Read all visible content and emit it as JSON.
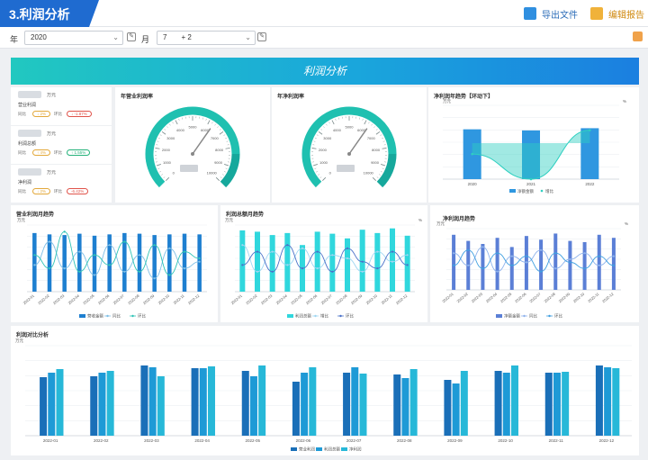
{
  "header": {
    "title": "3.利润分析",
    "export_label": "导出文件",
    "edit_label": "编辑报告"
  },
  "filters": {
    "year_label": "年",
    "year_value": "2020",
    "month_label": "月",
    "month_value": "7　　+ 2"
  },
  "banner": {
    "title": "利润分析"
  },
  "kpis": [
    {
      "unit": "万元",
      "name": "营业利润",
      "yoy_label": "同比",
      "yoy_value": "↓ 2%",
      "mom_label": "环比",
      "mom_value": "↓ -1.87%",
      "yoy_color": "#e3a83a",
      "mom_color": "#e0534a"
    },
    {
      "unit": "万元",
      "name": "利润总额",
      "yoy_label": "同比",
      "yoy_value": "↑ 4%",
      "mom_label": "环比",
      "mom_value": "↑ 1.55%",
      "yoy_color": "#e3a83a",
      "mom_color": "#25b27a"
    },
    {
      "unit": "万元",
      "name": "净利润",
      "yoy_label": "同比",
      "yoy_value": "↓ 2%",
      "mom_label": "环比",
      "mom_value": "-6.42%",
      "yoy_color": "#e3a83a",
      "mom_color": "#e0534a"
    }
  ],
  "gauges": {
    "g1_title": "年营业利润率",
    "g2_title": "年净利润率",
    "ticks": [
      "0",
      "1000",
      "2000",
      "3000",
      "4000",
      "5000",
      "6000",
      "7000",
      "8000",
      "9000",
      "10000"
    ]
  },
  "chart_data": [
    {
      "type": "bar",
      "title": "净利润年趋势【环动下】",
      "ylabel": "万元",
      "y2label": "%",
      "categories": [
        "2020",
        "2021",
        "2022"
      ],
      "series": [
        {
          "name": "净额金额",
          "values": [
            90,
            88,
            92
          ],
          "color": "#2f97e0"
        },
        {
          "name": "增比",
          "values": [
            40,
            0,
            78
          ],
          "color": "#2fcfc0"
        }
      ],
      "legend": "bottom"
    },
    {
      "type": "bar",
      "title": "营业利润月趋势",
      "ylabel": "万元",
      "categories": [
        "2022-01",
        "2022-02",
        "2022-03",
        "2022-04",
        "2022-05",
        "2022-06",
        "2022-07",
        "2022-08",
        "2022-09",
        "2022-10",
        "2022-11",
        "2022-12"
      ],
      "series": [
        {
          "name": "营收金额",
          "values": [
            88,
            86,
            85,
            87,
            84,
            86,
            88,
            87,
            85,
            86,
            87,
            86
          ],
          "color": "#1e7fd0"
        },
        {
          "name": "同比",
          "values": [
            40,
            75,
            35,
            60,
            25,
            70,
            30,
            55,
            20,
            65,
            35,
            45
          ],
          "color": "#7fbfe6"
        },
        {
          "name": "环比",
          "values": [
            55,
            35,
            90,
            30,
            55,
            40,
            75,
            30,
            70,
            25,
            60,
            50
          ],
          "color": "#2fc4b6"
        }
      ],
      "legend": "bottom"
    },
    {
      "type": "bar",
      "title": "利润总额月趋势",
      "ylabel": "万元",
      "y2label": "%",
      "categories": [
        "2022-01",
        "2022-02",
        "2022-03",
        "2022-04",
        "2022-05",
        "2022-06",
        "2022-07",
        "2022-08",
        "2022-09",
        "2022-10",
        "2022-11",
        "2022-12"
      ],
      "series": [
        {
          "name": "利润总额",
          "values": [
            92,
            90,
            85,
            88,
            70,
            90,
            87,
            80,
            93,
            88,
            95,
            84
          ],
          "color": "#30d7dd"
        },
        {
          "name": "增比",
          "values": [
            70,
            30,
            60,
            40,
            65,
            35,
            55,
            50,
            30,
            60,
            45,
            55
          ],
          "color": "#9fd6f2"
        },
        {
          "name": "环比",
          "values": [
            40,
            60,
            30,
            70,
            35,
            60,
            30,
            65,
            45,
            35,
            60,
            40
          ],
          "color": "#4a70c8"
        }
      ],
      "legend": "bottom"
    },
    {
      "type": "bar",
      "title": "净利润月趋势",
      "ylabel": "万元",
      "y2label": "%",
      "categories": [
        "2022-01",
        "2022-02",
        "2022-03",
        "2022-04",
        "2022-05",
        "2022-06",
        "2022-07",
        "2022-08",
        "2022-09",
        "2022-10",
        "2022-11",
        "2022-12"
      ],
      "series": [
        {
          "name": "净额金额",
          "values": [
            90,
            80,
            75,
            85,
            70,
            88,
            82,
            92,
            80,
            78,
            90,
            85
          ],
          "color": "#5b7fd6"
        },
        {
          "name": "同比",
          "values": [
            60,
            40,
            70,
            30,
            55,
            45,
            65,
            35,
            50,
            60,
            40,
            55
          ],
          "color": "#8fb3ec"
        },
        {
          "name": "环比",
          "values": [
            40,
            65,
            35,
            60,
            40,
            55,
            30,
            60,
            45,
            35,
            55,
            40
          ],
          "color": "#3f9fe0"
        }
      ],
      "legend": "bottom"
    },
    {
      "type": "bar",
      "title": "利润对比分析",
      "ylabel": "万元",
      "categories": [
        "2022-01",
        "2022-02",
        "2022-03",
        "2022-04",
        "2022-05",
        "2022-06",
        "2022-07",
        "2022-08",
        "2022-09",
        "2022-10",
        "2022-11",
        "2022-12"
      ],
      "series": [
        {
          "name": "营业利润",
          "values": [
            65,
            66,
            78,
            75,
            72,
            60,
            70,
            68,
            62,
            72,
            70,
            78
          ],
          "color": "#1a6fb8"
        },
        {
          "name": "利润总额",
          "values": [
            70,
            70,
            76,
            75,
            66,
            70,
            76,
            64,
            58,
            70,
            70,
            76
          ],
          "color": "#1e9ad6"
        },
        {
          "name": "净利润",
          "values": [
            74,
            72,
            66,
            77,
            78,
            76,
            69,
            74,
            72,
            78,
            71,
            75
          ],
          "color": "#27b8d8"
        }
      ],
      "legend": "bottom"
    }
  ]
}
